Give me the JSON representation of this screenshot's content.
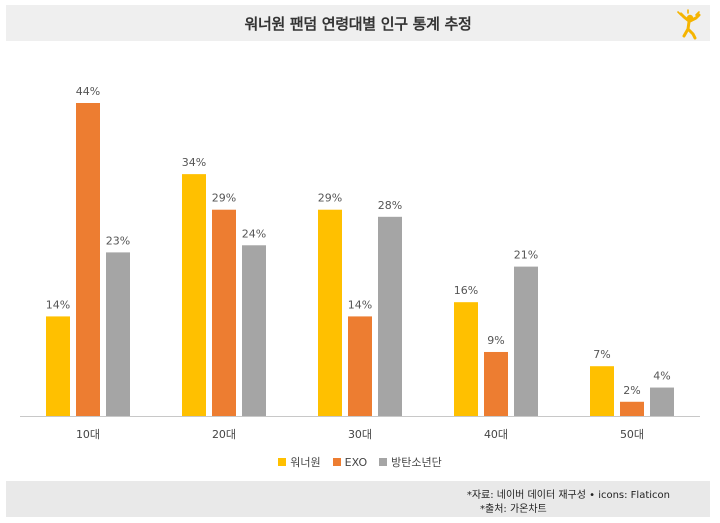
{
  "header": {
    "title": "워너원 팬덤 연령대별 인구 통계 추정",
    "logo_icon": "cheering-person-icon"
  },
  "colors": {
    "워너원": "#FFC000",
    "EXO": "#ED7D31",
    "방탄소년단": "#A5A5A5",
    "axis": "#c8c8c8"
  },
  "chart_data": {
    "type": "bar",
    "title": "워너원 팬덤 연령대별 인구 통계 추정",
    "categories": [
      "10대",
      "20대",
      "30대",
      "40대",
      "50대"
    ],
    "series": [
      {
        "name": "워너원",
        "values": [
          14,
          34,
          29,
          16,
          7
        ],
        "labels": [
          "14%",
          "34%",
          "29%",
          "16%",
          "7%"
        ]
      },
      {
        "name": "EXO",
        "values": [
          44,
          29,
          14,
          9,
          2
        ],
        "labels": [
          "44%",
          "29%",
          "14%",
          "9%",
          "2%"
        ]
      },
      {
        "name": "방탄소년단",
        "values": [
          23,
          24,
          28,
          21,
          4
        ],
        "labels": [
          "23%",
          "24%",
          "28%",
          "21%",
          "4%"
        ]
      }
    ],
    "ylim": [
      0,
      44
    ],
    "xlabel": "",
    "ylabel": "",
    "grid": false,
    "legend": "bottom-center"
  },
  "footer": {
    "source": "*자료: 네이버 데이터 재구성 • icons: Flaticon",
    "origin": "*출처: 가온차트"
  }
}
